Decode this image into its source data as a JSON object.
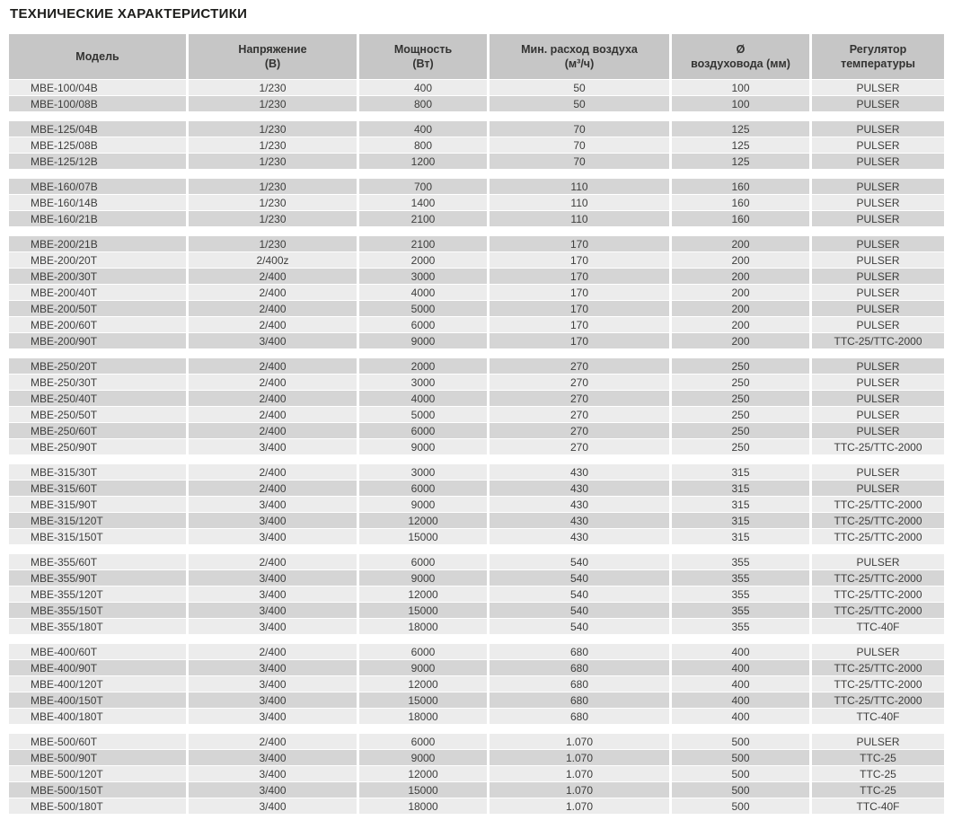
{
  "page_title": "ТЕХНИЧЕСКИЕ ХАРАКТЕРИСТИКИ",
  "colors": {
    "header_bg": "#c6c6c6",
    "row_light": "#ececec",
    "row_dark": "#d5d5d5",
    "text": "#3d3d3c",
    "title": "#1d1d1b"
  },
  "table": {
    "columns": [
      {
        "label": "Модель",
        "sub": ""
      },
      {
        "label": "Напряжение",
        "sub": "(В)"
      },
      {
        "label": "Мощность",
        "sub": "(Вт)"
      },
      {
        "label": "Мин. расход воздуха",
        "sub": "(м³/ч)"
      },
      {
        "label": "Ø",
        "sub": "воздуховода (мм)"
      },
      {
        "label": "Регулятор",
        "sub": "температуры"
      }
    ],
    "groups": [
      {
        "name": "MBE-100",
        "rows": [
          [
            "MBE-100/04B",
            "1/230",
            "400",
            "50",
            "100",
            "PULSER"
          ],
          [
            "MBE-100/08B",
            "1/230",
            "800",
            "50",
            "100",
            "PULSER"
          ]
        ]
      },
      {
        "name": "MBE-125",
        "rows": [
          [
            "MBE-125/04B",
            "1/230",
            "400",
            "70",
            "125",
            "PULSER"
          ],
          [
            "MBE-125/08B",
            "1/230",
            "800",
            "70",
            "125",
            "PULSER"
          ],
          [
            "MBE-125/12B",
            "1/230",
            "1200",
            "70",
            "125",
            "PULSER"
          ]
        ]
      },
      {
        "name": "MBE-160",
        "rows": [
          [
            "MBE-160/07B",
            "1/230",
            "700",
            "110",
            "160",
            "PULSER"
          ],
          [
            "MBE-160/14B",
            "1/230",
            "1400",
            "110",
            "160",
            "PULSER"
          ],
          [
            "MBE-160/21B",
            "1/230",
            "2100",
            "110",
            "160",
            "PULSER"
          ]
        ]
      },
      {
        "name": "MBE-200",
        "rows": [
          [
            "MBE-200/21B",
            "1/230",
            "2100",
            "170",
            "200",
            "PULSER"
          ],
          [
            "MBE-200/20T",
            "2/400z",
            "2000",
            "170",
            "200",
            "PULSER"
          ],
          [
            "MBE-200/30T",
            "2/400",
            "3000",
            "170",
            "200",
            "PULSER"
          ],
          [
            "MBE-200/40T",
            "2/400",
            "4000",
            "170",
            "200",
            "PULSER"
          ],
          [
            "MBE-200/50T",
            "2/400",
            "5000",
            "170",
            "200",
            "PULSER"
          ],
          [
            "MBE-200/60T",
            "2/400",
            "6000",
            "170",
            "200",
            "PULSER"
          ],
          [
            "MBE-200/90T",
            "3/400",
            "9000",
            "170",
            "200",
            "TTC-25/TTC-2000"
          ]
        ]
      },
      {
        "name": "MBE-250",
        "rows": [
          [
            "MBE-250/20T",
            "2/400",
            "2000",
            "270",
            "250",
            "PULSER"
          ],
          [
            "MBE-250/30T",
            "2/400",
            "3000",
            "270",
            "250",
            "PULSER"
          ],
          [
            "MBE-250/40T",
            "2/400",
            "4000",
            "270",
            "250",
            "PULSER"
          ],
          [
            "MBE-250/50T",
            "2/400",
            "5000",
            "270",
            "250",
            "PULSER"
          ],
          [
            "MBE-250/60T",
            "2/400",
            "6000",
            "270",
            "250",
            "PULSER"
          ],
          [
            "MBE-250/90T",
            "3/400",
            "9000",
            "270",
            "250",
            "TTC-25/TTC-2000"
          ]
        ]
      },
      {
        "name": "MBE-315",
        "rows": [
          [
            "MBE-315/30T",
            "2/400",
            "3000",
            "430",
            "315",
            "PULSER"
          ],
          [
            "MBE-315/60T",
            "2/400",
            "6000",
            "430",
            "315",
            "PULSER"
          ],
          [
            "MBE-315/90T",
            "3/400",
            "9000",
            "430",
            "315",
            "TTC-25/TTC-2000"
          ],
          [
            "MBE-315/120T",
            "3/400",
            "12000",
            "430",
            "315",
            "TTC-25/TTC-2000"
          ],
          [
            "MBE-315/150T",
            "3/400",
            "15000",
            "430",
            "315",
            "TTC-25/TTC-2000"
          ]
        ]
      },
      {
        "name": "MBE-355",
        "rows": [
          [
            "MBE-355/60T",
            "2/400",
            "6000",
            "540",
            "355",
            "PULSER"
          ],
          [
            "MBE-355/90T",
            "3/400",
            "9000",
            "540",
            "355",
            "TTC-25/TTC-2000"
          ],
          [
            "MBE-355/120T",
            "3/400",
            "12000",
            "540",
            "355",
            "TTC-25/TTC-2000"
          ],
          [
            "MBE-355/150T",
            "3/400",
            "15000",
            "540",
            "355",
            "TTC-25/TTC-2000"
          ],
          [
            "MBE-355/180T",
            "3/400",
            "18000",
            "540",
            "355",
            "TTC-40F"
          ]
        ]
      },
      {
        "name": "MBE-400",
        "rows": [
          [
            "MBE-400/60T",
            "2/400",
            "6000",
            "680",
            "400",
            "PULSER"
          ],
          [
            "MBE-400/90T",
            "3/400",
            "9000",
            "680",
            "400",
            "TTC-25/TTC-2000"
          ],
          [
            "MBE-400/120T",
            "3/400",
            "12000",
            "680",
            "400",
            "TTC-25/TTC-2000"
          ],
          [
            "MBE-400/150T",
            "3/400",
            "15000",
            "680",
            "400",
            "TTC-25/TTC-2000"
          ],
          [
            "MBE-400/180T",
            "3/400",
            "18000",
            "680",
            "400",
            "TTC-40F"
          ]
        ]
      },
      {
        "name": "MBE-500",
        "rows": [
          [
            "MBE-500/60T",
            "2/400",
            "6000",
            "1.070",
            "500",
            "PULSER"
          ],
          [
            "MBE-500/90T",
            "3/400",
            "9000",
            "1.070",
            "500",
            "TTC-25"
          ],
          [
            "MBE-500/120T",
            "3/400",
            "12000",
            "1.070",
            "500",
            "TTC-25"
          ],
          [
            "MBE-500/150T",
            "3/400",
            "15000",
            "1.070",
            "500",
            "TTC-25"
          ],
          [
            "MBE-500/180T",
            "3/400",
            "18000",
            "1.070",
            "500",
            "TTC-40F"
          ]
        ]
      }
    ]
  }
}
